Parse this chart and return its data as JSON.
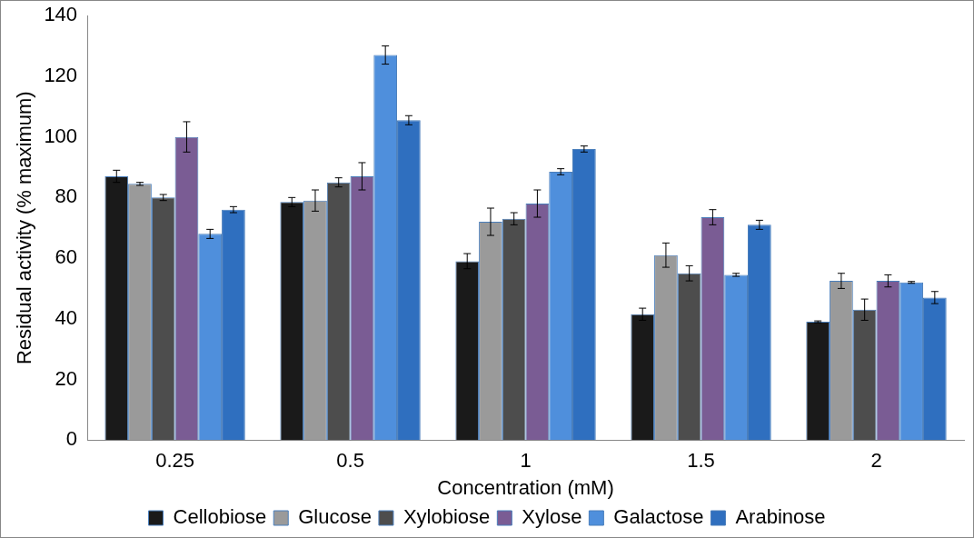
{
  "chart_data": {
    "type": "bar",
    "xlabel": "Concentration (mM)",
    "ylabel": "Residual activity (% maximum)",
    "categories": [
      "0.25",
      "0.5",
      "1",
      "1.5",
      "2"
    ],
    "series": [
      {
        "name": "Cellobiose",
        "color": "#1a1a1a",
        "values": [
          87,
          78.5,
          59,
          41.5,
          39
        ],
        "errors": [
          2,
          1.5,
          2.5,
          2,
          0.3
        ]
      },
      {
        "name": "Glucose",
        "color": "#9a9a9a",
        "values": [
          84.5,
          79,
          72,
          61,
          52.5
        ],
        "errors": [
          0.5,
          3.5,
          4.5,
          4,
          2.5
        ]
      },
      {
        "name": "Xylobiose",
        "color": "#4d4d4d",
        "values": [
          80,
          85,
          73,
          55,
          43
        ],
        "errors": [
          1,
          1.5,
          2,
          2.5,
          3.5
        ]
      },
      {
        "name": "Xylose",
        "color": "#7a5c94",
        "values": [
          100,
          87,
          78,
          73.5,
          52.5
        ],
        "errors": [
          5,
          4.5,
          4.5,
          2.5,
          2
        ]
      },
      {
        "name": "Galactose",
        "color": "#4f8fdc",
        "values": [
          68,
          127,
          88.5,
          54.5,
          52
        ],
        "errors": [
          1.5,
          3,
          1,
          0.5,
          0.3
        ]
      },
      {
        "name": "Arabinose",
        "color": "#2f6fbf",
        "values": [
          76,
          105.5,
          96,
          71,
          47
        ],
        "errors": [
          1,
          1.5,
          1,
          1.5,
          2
        ]
      }
    ],
    "ylim": [
      0,
      140
    ],
    "yticks": [
      0,
      20,
      40,
      60,
      80,
      100,
      120,
      140
    ],
    "grid": false,
    "legend": "bottom"
  }
}
